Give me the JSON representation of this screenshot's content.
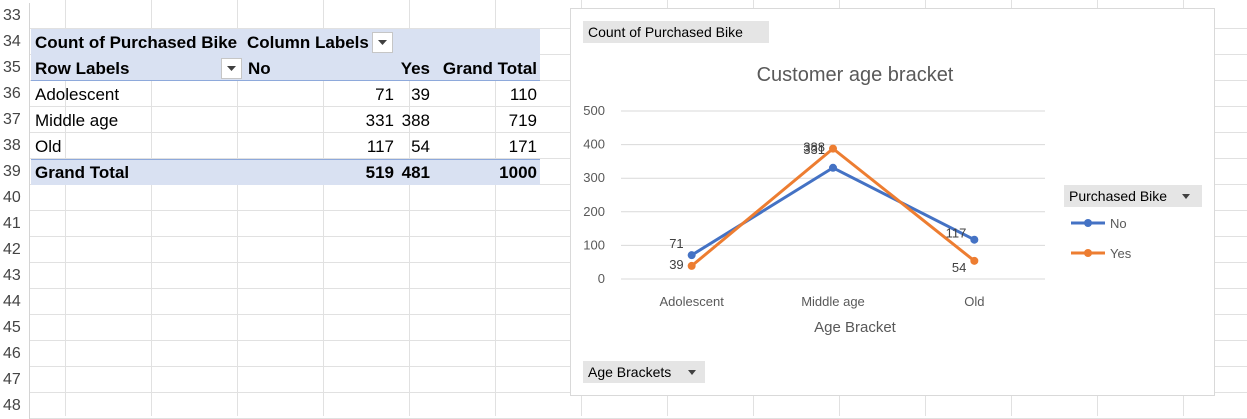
{
  "rows": [
    "33",
    "34",
    "35",
    "36",
    "37",
    "38",
    "39",
    "40",
    "41",
    "42",
    "43",
    "44",
    "45",
    "46",
    "47",
    "48"
  ],
  "pivot": {
    "corner_label": "Count of Purchased Bike",
    "column_labels": "Column Labels",
    "row_labels": "Row Labels",
    "col_no": "No",
    "col_yes": "Yes",
    "col_grand": "Grand Total",
    "data": [
      {
        "label": "Adolescent",
        "no": "71",
        "yes": "39",
        "total": "110"
      },
      {
        "label": "Middle age",
        "no": "331",
        "yes": "388",
        "total": "719"
      },
      {
        "label": "Old",
        "no": "117",
        "yes": "54",
        "total": "171"
      }
    ],
    "grand": {
      "label": "Grand Total",
      "no": "519",
      "yes": "481",
      "total": "1000"
    }
  },
  "chart": {
    "value_field": "Count of Purchased Bike",
    "legend_field": "Purchased Bike",
    "axis_field": "Age Brackets"
  },
  "chart_data": {
    "type": "line",
    "title": "Customer age bracket",
    "xlabel": "Age Bracket",
    "ylabel": "",
    "categories": [
      "Adolescent",
      "Middle age",
      "Old"
    ],
    "ylim": [
      0,
      500
    ],
    "yticks": [
      0,
      100,
      200,
      300,
      400,
      500
    ],
    "grid": true,
    "legend_position": "right",
    "series": [
      {
        "name": "No",
        "values": [
          71,
          331,
          117
        ],
        "color": "#4472c4"
      },
      {
        "name": "Yes",
        "values": [
          39,
          388,
          54
        ],
        "color": "#ed7d31"
      }
    ]
  }
}
